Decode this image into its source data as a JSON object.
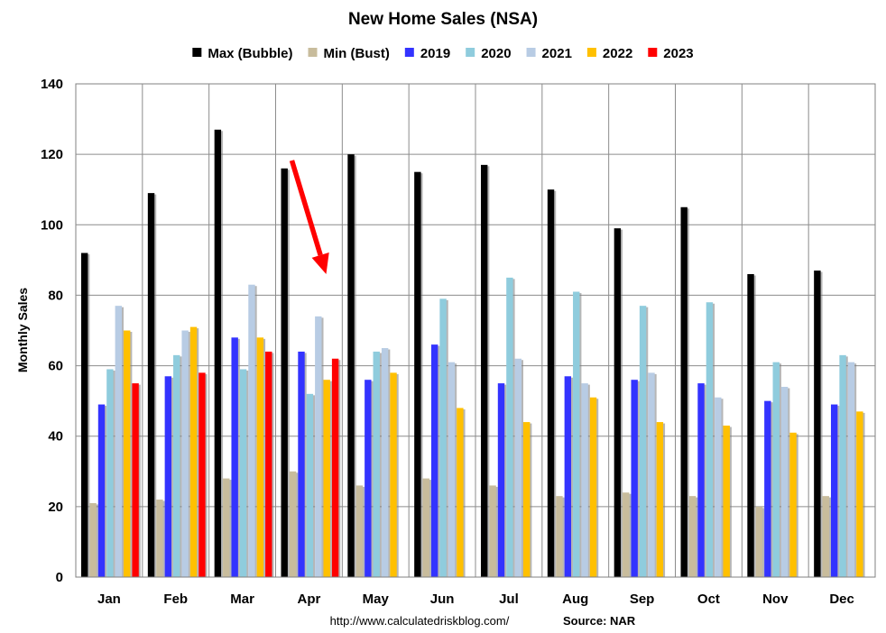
{
  "chart_data": {
    "type": "bar",
    "title": "New Home Sales (NSA)",
    "ylabel": "Monthly Sales",
    "xlabel": "",
    "ylim": [
      0,
      140
    ],
    "yticks": [
      0,
      20,
      40,
      60,
      80,
      100,
      120,
      140
    ],
    "grid": true,
    "legend_position": "top",
    "categories": [
      "Jan",
      "Feb",
      "Mar",
      "Apr",
      "May",
      "Jun",
      "Jul",
      "Aug",
      "Sep",
      "Oct",
      "Nov",
      "Dec"
    ],
    "series": [
      {
        "name": "Max (Bubble)",
        "color": "#000000",
        "values": [
          92,
          109,
          127,
          116,
          120,
          115,
          117,
          110,
          99,
          105,
          86,
          87
        ]
      },
      {
        "name": "Min (Bust)",
        "color": "#C8BC9C",
        "values": [
          21,
          22,
          28,
          30,
          26,
          28,
          26,
          23,
          24,
          23,
          20,
          23
        ]
      },
      {
        "name": "2019",
        "color": "#3333FF",
        "values": [
          49,
          57,
          68,
          64,
          56,
          66,
          55,
          57,
          56,
          55,
          50,
          49
        ]
      },
      {
        "name": "2020",
        "color": "#8FCCDD",
        "values": [
          59,
          63,
          59,
          52,
          64,
          79,
          85,
          81,
          77,
          78,
          61,
          63
        ]
      },
      {
        "name": "2021",
        "color": "#B8CCE4",
        "values": [
          77,
          70,
          83,
          74,
          65,
          61,
          62,
          55,
          58,
          51,
          54,
          61
        ]
      },
      {
        "name": "2022",
        "color": "#FFC000",
        "values": [
          70,
          71,
          68,
          56,
          58,
          48,
          44,
          51,
          44,
          43,
          41,
          47
        ]
      },
      {
        "name": "2023",
        "color": "#FF0000",
        "values": [
          55,
          58,
          64,
          62,
          null,
          null,
          null,
          null,
          null,
          null,
          null,
          null
        ]
      }
    ],
    "annotations": [
      {
        "type": "arrow",
        "color": "#FF0000",
        "target": "Apr"
      }
    ],
    "footer": {
      "url": "http://www.calculatedriskblog.com/",
      "source": "Source: NAR"
    }
  }
}
